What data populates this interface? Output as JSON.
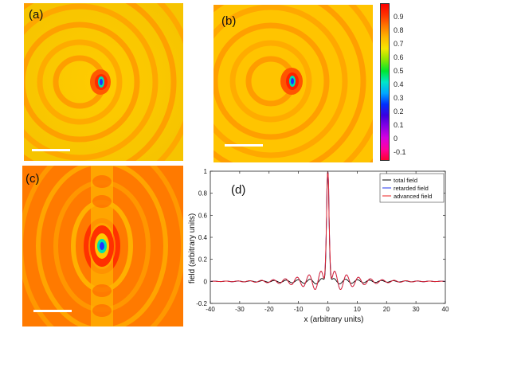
{
  "panels": {
    "a": {
      "label": "(a)"
    },
    "b": {
      "label": "(b)"
    },
    "c": {
      "label": "(c)"
    },
    "d": {
      "label": "(d)"
    }
  },
  "colorbar": {
    "ticks": [
      "0.9",
      "0.8",
      "0.7",
      "0.6",
      "0.5",
      "0.4",
      "0.3",
      "0.2",
      "0.1",
      "0",
      "-0.1"
    ],
    "min": -0.15,
    "max": 1.0,
    "colors": [
      "#ff0000",
      "#ff3300",
      "#ff7a00",
      "#ffb800",
      "#f5e600",
      "#8ce600",
      "#00e62e",
      "#00e6c8",
      "#00a8ff",
      "#0030ff",
      "#3a00e0",
      "#8a00e6",
      "#d600e0",
      "#ff00a0",
      "#ff0030"
    ]
  },
  "chart_data": {
    "type": "line",
    "xlabel": "x (arbitrary units)",
    "ylabel": "field (arbitrary units)",
    "xlim": [
      -40,
      40
    ],
    "ylim": [
      -0.2,
      1.0
    ],
    "xticks": [
      -40,
      -30,
      -20,
      -10,
      0,
      10,
      20,
      30,
      40
    ],
    "yticks": [
      -0.2,
      0,
      0.2,
      0.4,
      0.6,
      0.8,
      1
    ],
    "ytick_labels": [
      "-0.2",
      "0",
      "0.2",
      "0.4",
      "0.6",
      "0.8",
      "1"
    ],
    "series": [
      {
        "name": "total field",
        "color": "#000000"
      },
      {
        "name": "retarded field",
        "color": "#2233ee"
      },
      {
        "name": "advanced field",
        "color": "#ee2222"
      }
    ]
  }
}
